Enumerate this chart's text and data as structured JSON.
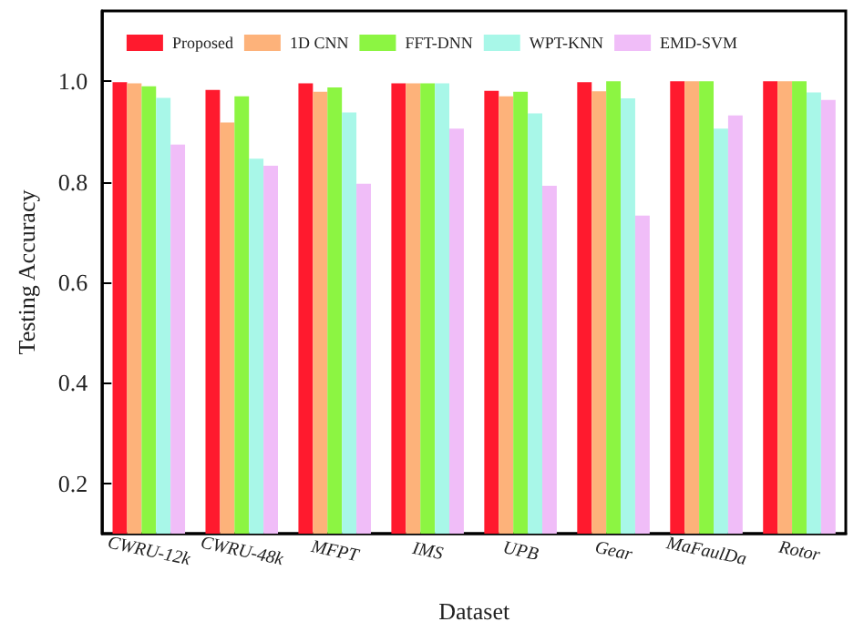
{
  "chart_data": {
    "type": "bar",
    "xlabel": "Dataset",
    "ylabel": "Testing Accuracy",
    "categories": [
      "CWRU-12k",
      "CWRU-48k",
      "MFPT",
      "IMS",
      "UPB",
      "Gear",
      "MaFaulDa",
      "Rotor"
    ],
    "series": [
      {
        "name": "Proposed",
        "color": "#ff1a2e",
        "values": [
          0.998,
          0.983,
          0.996,
          0.996,
          0.981,
          0.998,
          1.0,
          1.0
        ]
      },
      {
        "name": "1D CNN",
        "color": "#fdb27a",
        "values": [
          0.996,
          0.918,
          0.979,
          0.996,
          0.97,
          0.98,
          1.0,
          1.0
        ]
      },
      {
        "name": "FFT-DNN",
        "color": "#8cf542",
        "values": [
          0.99,
          0.97,
          0.988,
          0.996,
          0.979,
          1.0,
          1.0,
          1.0
        ]
      },
      {
        "name": "WPT-KNN",
        "color": "#a8f7e8",
        "values": [
          0.967,
          0.846,
          0.938,
          0.996,
          0.936,
          0.966,
          0.906,
          0.978
        ]
      },
      {
        "name": "EMD-SVM",
        "color": "#f0bdf8",
        "values": [
          0.874,
          0.832,
          0.796,
          0.906,
          0.792,
          0.733,
          0.932,
          0.963
        ]
      }
    ],
    "ylim": [
      0.1,
      1.14
    ],
    "yticks": [
      0.2,
      0.4,
      0.6,
      0.8,
      {
        "value": 1,
        "label": "1.0"
      }
    ],
    "grid": false,
    "legend": "top"
  }
}
